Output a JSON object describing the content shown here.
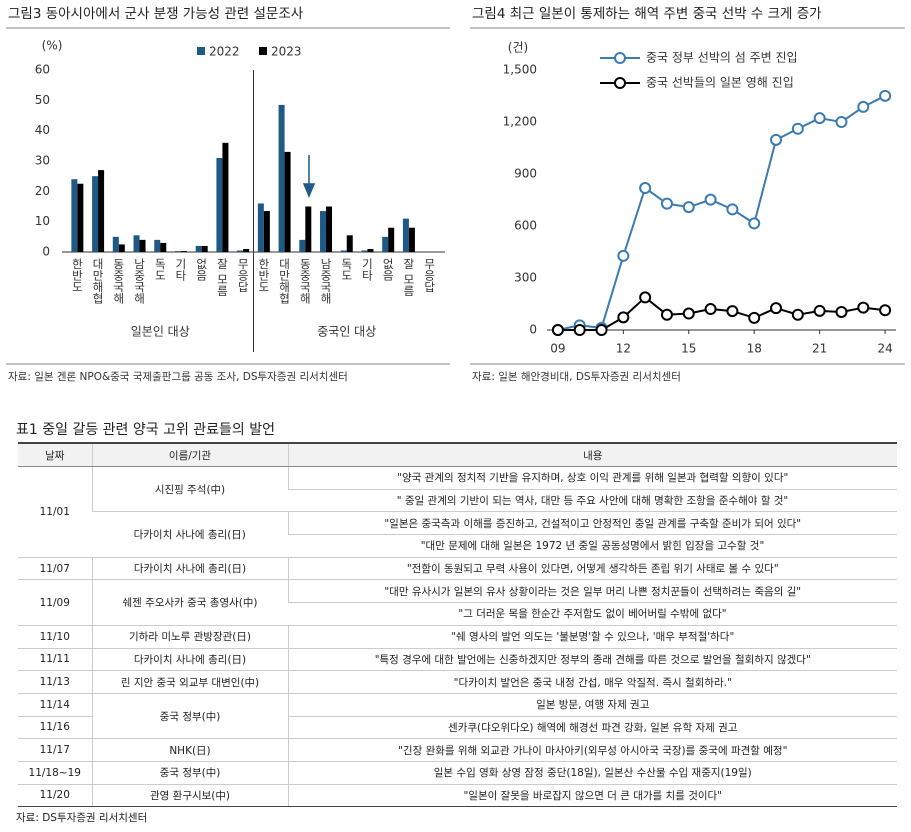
{
  "chart_data": [
    {
      "type": "bar",
      "title": "그림3 동아시아에서 군사 분쟁 가능성 관련 설문조사",
      "y_label": "(%)",
      "categories": [
        "한반도",
        "대만해협",
        "동중국해",
        "남중국해",
        "독도",
        "기타",
        "없음",
        "잘 모름",
        "무응답",
        "한반도",
        "대만해협",
        "동중국해",
        "남중국해",
        "독도",
        "기타",
        "없음",
        "잘 모름",
        "무응답"
      ],
      "group_labels": [
        "일본인 대상",
        "중국인 대상"
      ],
      "series": [
        {
          "name": "2022",
          "color": "#1f5a85",
          "values": [
            24,
            25,
            5,
            5.5,
            4,
            0.3,
            2,
            31,
            0.5,
            16,
            48.5,
            4,
            13.5,
            0.5,
            0.5,
            5,
            11,
            0
          ]
        },
        {
          "name": "2023",
          "color": "#000000",
          "values": [
            22.5,
            27,
            2.5,
            4,
            3,
            0.3,
            2,
            36,
            1,
            13.5,
            33,
            15,
            15,
            5.5,
            1,
            8,
            8,
            0
          ]
        }
      ],
      "ylim": [
        0,
        60
      ],
      "yticks": [
        0,
        10,
        20,
        30,
        40,
        50,
        60
      ],
      "source": "자료: 일본 겐론 NPO&중국 국제출판그룹 공동 조사, DS투자증권 리서치센터"
    },
    {
      "type": "line",
      "title": "그림4 최근 일본이 통제하는 해역 주변 중국 선박 수 크게 증가",
      "y_label": "(건)",
      "x": [
        9,
        10,
        11,
        12,
        13,
        14,
        15,
        16,
        17,
        18,
        19,
        20,
        21,
        22,
        23,
        24
      ],
      "xlim": [
        8.5,
        24.5
      ],
      "xticks": [
        {
          "value": 9,
          "label": "09"
        },
        12,
        15,
        18,
        21,
        24
      ],
      "ylim": [
        0,
        1500
      ],
      "yticks": [
        0,
        300,
        600,
        900,
        {
          "value": 1200,
          "label": "1,200"
        },
        {
          "value": 1500,
          "label": "1,500"
        }
      ],
      "marker": "circle",
      "series": [
        {
          "name": "중국 정부 선박의 섬 주변 진입",
          "color": "#3b7bb0",
          "values": [
            0,
            27,
            12,
            428,
            819,
            729,
            709,
            752,
            696,
            615,
            1097,
            1161,
            1222,
            1200,
            1287,
            1351
          ]
        },
        {
          "name": "중국 선박들의 일본 영해 진입",
          "color": "#000000",
          "values": [
            0,
            0,
            0,
            73,
            188,
            88,
            95,
            121,
            109,
            70,
            126,
            88,
            110,
            104,
            129,
            114
          ]
        }
      ],
      "source": "자료: 일본 해안경비대, DS투자증권 리서치센터"
    }
  ],
  "table": {
    "title": "표1 중일 갈등 관련 양국 고위 관료들의 발언",
    "headers": [
      "날짜",
      "이름/기관",
      "내용"
    ],
    "rows": [
      {
        "date": "11/01",
        "name": "시진핑 주석(中)",
        "content": "\"양국 관계의 정치적 기반을 유지하며, 상호 이익 관계를 위해 일본과 협력할 의향이 있다\""
      },
      {
        "content": "\" 중일 관계의 기반이 되는 역사, 대만 등 주요 사안에 대해 명확한 조항을 준수해야 할 것\""
      },
      {
        "name": "다카이치 사나에 총리(日)",
        "content": "\"일본은 중국측과 이해를 증진하고, 건설적이고 안정적인 중일 관계를 구축할 준비가 되어 있다\""
      },
      {
        "content": "\"대만 문제에 대해 일본은 1972 년 중일 공동성명에서 밝힌 입장을 고수할 것\""
      },
      {
        "date": "11/07",
        "name": "다카이치 사나에 총리(日)",
        "content": "\"전함이 동원되고 무력 사용이 있다면, 어떻게 생각하든 존립 위기 사태로 볼 수 있다\""
      },
      {
        "date": "11/09",
        "name": "쉐젠 주오사카 중국 총영사(中)",
        "content": "\"대만 유사시가 일본의 유사 상황이라는 것은 일부 머리 나쁜 정치꾼들이 선택하려는 죽음의 길\""
      },
      {
        "content": "\"그 더러운 목을 한순간 주저함도 없이 베어버릴 수밖에 없다\""
      },
      {
        "date": "11/10",
        "name": "기하라 미노루 관방장관(日)",
        "content": "\"쉐 영사의 발언 의도는 '불분명'할 수 있으나, '매우 부적절'하다\""
      },
      {
        "date": "11/11",
        "name": "다카이치 사나에 총리(日)",
        "content": "\"특정 경우에 대한 발언에는 신중하겠지만 정부의 종래 견해를 따른 것으로 발언을 철회하지 않겠다\""
      },
      {
        "date": "11/13",
        "name": "린 지안 중국 외교부 대변인(中)",
        "content": "\"다카이치 발언은 중국 내정 간섭, 매우 악질적. 즉시 철회하라.\""
      },
      {
        "date": "11/14",
        "name": "중국 정부(中)",
        "content": "일본 방문, 여행 자제 권고"
      },
      {
        "date": "11/16",
        "content": "센카쿠(댜오위다오) 해역에 해경선 파견 강화, 일본 유학 자제 권고"
      },
      {
        "date": "11/17",
        "name": "NHK(日)",
        "content": "\"긴장 완화를 위해 외교관 가나이 마사아키(외무성 아시아국 국장)를 중국에 파견할 예정\""
      },
      {
        "date": "11/18~19",
        "name": "중국 정부(中)",
        "content": "일본 수입 영화 상영 잠정 중단(18일), 일본산 수산물 수입 재중지(19일)"
      },
      {
        "date": "11/20",
        "name": "관영 환구시보(中)",
        "content": "\"일본이 잘못을 바로잡지 않으면 더 큰 대가를 치를 것이다\""
      }
    ],
    "source": "자료: DS투자증권 리서치센터"
  }
}
